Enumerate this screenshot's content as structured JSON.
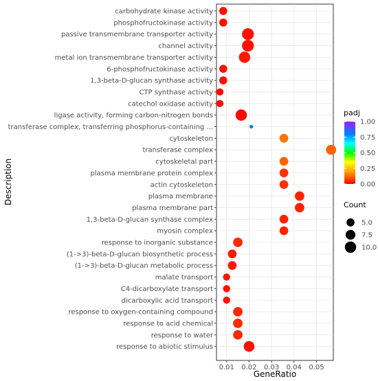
{
  "chart_data": {
    "type": "scatter",
    "xlabel": "GeneRatio",
    "ylabel": "Description",
    "xlim": [
      0.0055,
      0.0575
    ],
    "x_ticks": [
      "0.01",
      "0.02",
      "0.03",
      "0.04",
      "0.05"
    ],
    "grid": true,
    "color_legend": {
      "title": "padj",
      "ticks": [
        "1.00",
        "0.75",
        "0.50",
        "0.25",
        "0.00"
      ],
      "range": [
        0,
        1
      ]
    },
    "size_legend": {
      "title": "Count",
      "ticks": [
        "5.0",
        "7.5",
        "10.0"
      ],
      "values": [
        5,
        7.5,
        10
      ]
    },
    "points": [
      {
        "label": "carbohydrate kinase activity",
        "x": 0.0085,
        "count": 5,
        "padj": 0.02
      },
      {
        "label": "phosphofructokinase activity",
        "x": 0.0085,
        "count": 5,
        "padj": 0.02
      },
      {
        "label": "passive transmembrane transporter activity",
        "x": 0.0195,
        "count": 11,
        "padj": 0.02
      },
      {
        "label": "channel activity",
        "x": 0.0195,
        "count": 11,
        "padj": 0.02
      },
      {
        "label": "metal ion transmembrane transporter activity",
        "x": 0.018,
        "count": 10,
        "padj": 0.03
      },
      {
        "label": "6-phosphofructokinase activity",
        "x": 0.0085,
        "count": 5,
        "padj": 0.02
      },
      {
        "label": "1,3-beta-D-glucan synthase activity",
        "x": 0.0085,
        "count": 5,
        "padj": 0.02
      },
      {
        "label": "CTP synthase activity",
        "x": 0.007,
        "count": 4,
        "padj": 0.01
      },
      {
        "label": "catechol oxidase activity",
        "x": 0.007,
        "count": 4,
        "padj": 0.01
      },
      {
        "label": "ligase activity, forming carbon-nitrogen bonds",
        "x": 0.0165,
        "count": 10,
        "padj": 0.01
      },
      {
        "label": "transferase complex, transferring phosphorus-containing ...",
        "x": 0.021,
        "count": 1,
        "padj": 0.82
      },
      {
        "label": "cytoskeleton",
        "x": 0.0355,
        "count": 6,
        "padj": 0.14
      },
      {
        "label": "transferase complex",
        "x": 0.0565,
        "count": 8,
        "padj": 0.12
      },
      {
        "label": "cytoskeletal part",
        "x": 0.0355,
        "count": 6,
        "padj": 0.12
      },
      {
        "label": "plasma membrane protein complex",
        "x": 0.0355,
        "count": 6,
        "padj": 0.06
      },
      {
        "label": "actin cytoskeleton",
        "x": 0.0355,
        "count": 6,
        "padj": 0.06
      },
      {
        "label": "plasma membrane",
        "x": 0.0425,
        "count": 7,
        "padj": 0.04
      },
      {
        "label": "plasma membrane part",
        "x": 0.0425,
        "count": 7,
        "padj": 0.04
      },
      {
        "label": "1,3-beta-D-glucan synthase complex",
        "x": 0.0355,
        "count": 6,
        "padj": 0.04
      },
      {
        "label": "myosin complex",
        "x": 0.0355,
        "count": 6,
        "padj": 0.04
      },
      {
        "label": "response to inorganic substance",
        "x": 0.015,
        "count": 7,
        "padj": 0.05
      },
      {
        "label": "(1->3)-beta-D-glucan biosynthetic process",
        "x": 0.0125,
        "count": 6,
        "padj": 0.03
      },
      {
        "label": "(1->3)-beta-D-glucan metabolic process",
        "x": 0.0125,
        "count": 6,
        "padj": 0.03
      },
      {
        "label": "malate transport",
        "x": 0.01,
        "count": 4,
        "padj": 0.02
      },
      {
        "label": "C4-dicarboxylate transport",
        "x": 0.01,
        "count": 4,
        "padj": 0.02
      },
      {
        "label": "dicarboxylic acid transport",
        "x": 0.01,
        "count": 4,
        "padj": 0.02
      },
      {
        "label": "response to oxygen-containing compound",
        "x": 0.015,
        "count": 7,
        "padj": 0.05
      },
      {
        "label": "response to acid chemical",
        "x": 0.015,
        "count": 7,
        "padj": 0.05
      },
      {
        "label": "response to water",
        "x": 0.015,
        "count": 7,
        "padj": 0.05
      },
      {
        "label": "response to abiotic stimulus",
        "x": 0.02,
        "count": 9,
        "padj": 0.02
      }
    ]
  }
}
